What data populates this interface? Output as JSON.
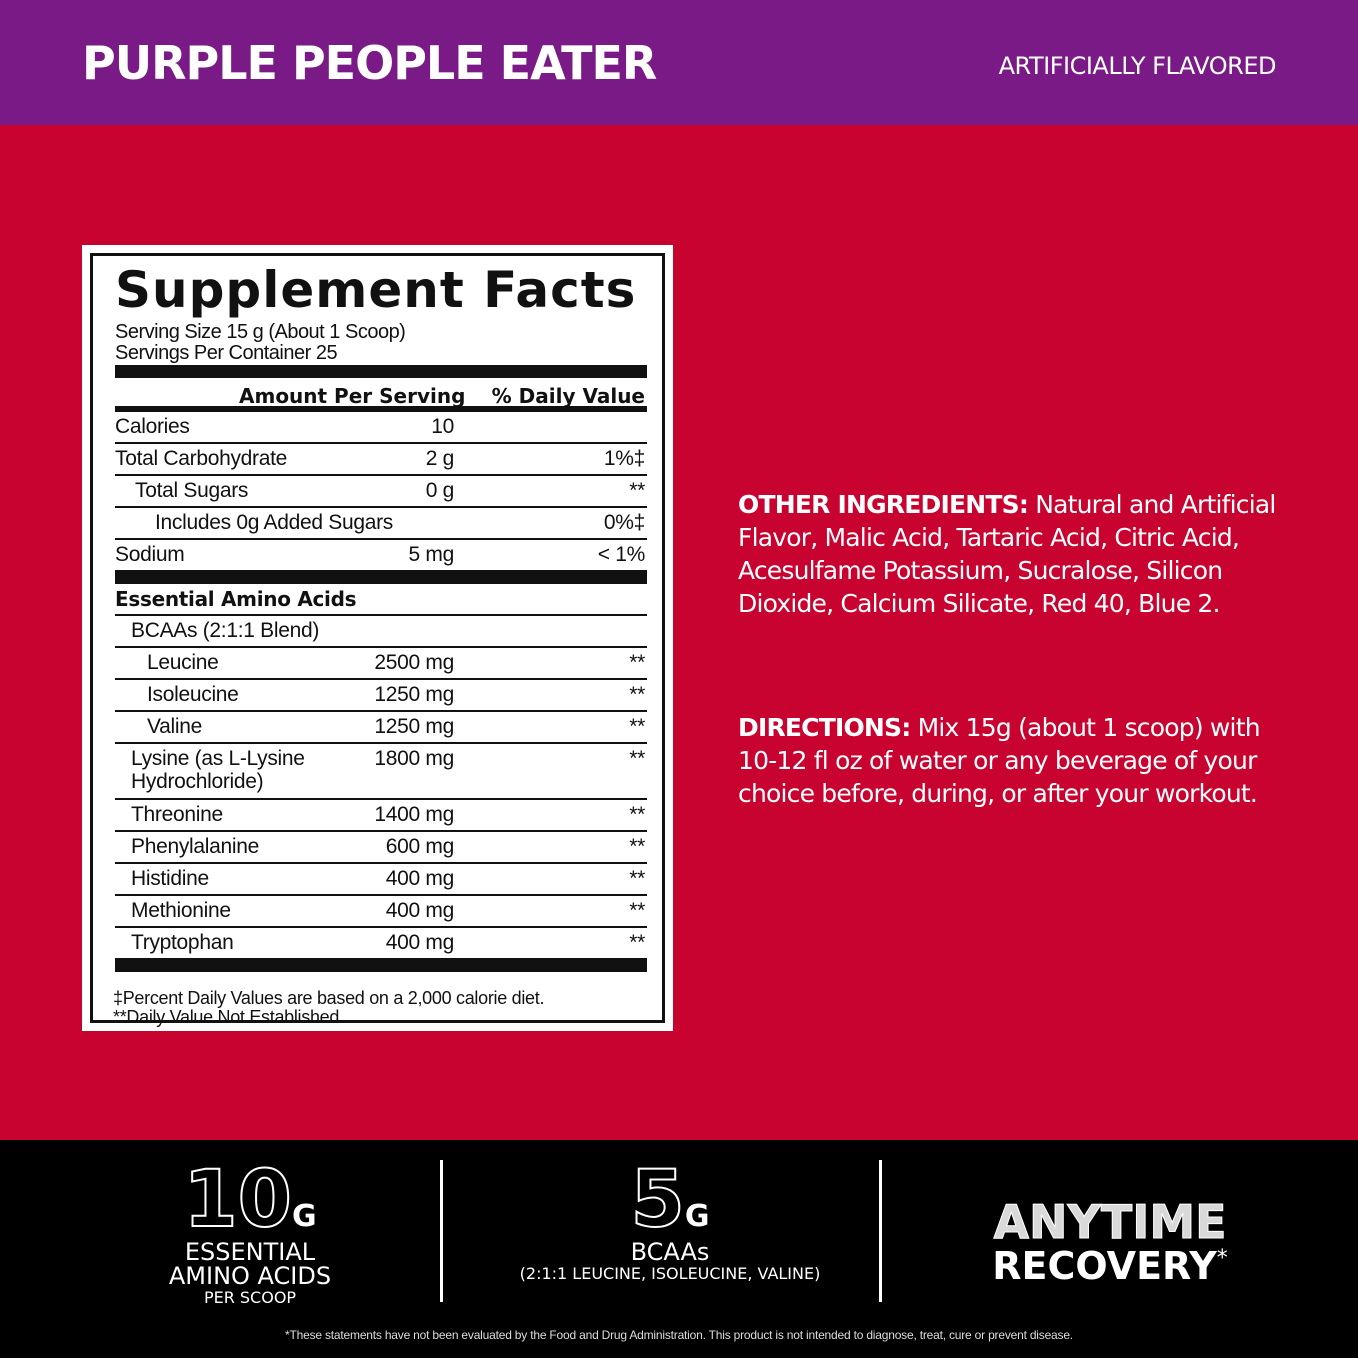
{
  "header": {
    "product_name": "PURPLE PEOPLE EATER",
    "flavor_note": "ARTIFICIALLY FLAVORED"
  },
  "colors": {
    "header": "#7a1a86",
    "background": "#c8032f",
    "footer": "#000000"
  },
  "facts": {
    "title": "Supplement Facts",
    "serving_size": "Serving Size 15 g (About 1 Scoop)",
    "servings_per_container": "Servings Per Container 25",
    "col_amount": "Amount Per Serving",
    "col_dv": "% Daily Value",
    "rows": [
      {
        "name": "Calories",
        "amount": "10",
        "dv": "",
        "indent": 0
      },
      {
        "name": "Total Carbohydrate",
        "amount": "2 g",
        "dv": "1%‡",
        "indent": 0
      },
      {
        "name": "Total Sugars",
        "amount": "0 g",
        "dv": "**",
        "indent": 20
      },
      {
        "name": "Includes 0g Added Sugars",
        "amount": "",
        "dv": "0%‡",
        "indent": 40
      },
      {
        "name": "Sodium",
        "amount": "5 mg",
        "dv": "< 1%",
        "indent": 0,
        "thick": true
      },
      {
        "name": "Essential Amino Acids",
        "amount": "",
        "dv": "",
        "indent": 0,
        "bold": true
      },
      {
        "name": "BCAAs (2:1:1 Blend)",
        "amount": "",
        "dv": "",
        "indent": 16
      },
      {
        "name": "Leucine",
        "amount": "2500 mg",
        "dv": "**",
        "indent": 32
      },
      {
        "name": "Isoleucine",
        "amount": "1250 mg",
        "dv": "**",
        "indent": 32
      },
      {
        "name": "Valine",
        "amount": "1250 mg",
        "dv": "**",
        "indent": 32
      },
      {
        "name": "Lysine (as L-Lysine Hydrochloride)",
        "amount": "1800 mg",
        "dv": "**",
        "indent": 16,
        "tall": true
      },
      {
        "name": "Threonine",
        "amount": "1400 mg",
        "dv": "**",
        "indent": 16
      },
      {
        "name": "Phenylalanine",
        "amount": "600 mg",
        "dv": "**",
        "indent": 16
      },
      {
        "name": "Histidine",
        "amount": "400 mg",
        "dv": "**",
        "indent": 16
      },
      {
        "name": "Methionine",
        "amount": "400 mg",
        "dv": "**",
        "indent": 16
      },
      {
        "name": "Tryptophan",
        "amount": "400 mg",
        "dv": "**",
        "indent": 16,
        "thick": true
      }
    ],
    "footnote_1": "‡Percent Daily Values are based on a 2,000 calorie diet.",
    "footnote_2": "**Daily Value Not Established."
  },
  "other_ingredients": {
    "label": "OTHER INGREDIENTS:",
    "text": " Natural and Artificial Flavor, Malic Acid, Tartaric Acid, Citric Acid, Acesulfame Potassium, Sucralose, Silicon Dioxide, Calcium Silicate, Red 40, Blue 2."
  },
  "directions": {
    "label": "DIRECTIONS:",
    "text": " Mix 15g (about 1 scoop) with 10-12 fl oz of water or any beverage of your choice before, during, or after your workout."
  },
  "features": {
    "eaa_value": "10",
    "eaa_unit": "G",
    "eaa_line1": "ESSENTIAL",
    "eaa_line2": "AMINO ACIDS",
    "eaa_line3": "PER SCOOP",
    "bcaa_value": "5",
    "bcaa_unit": "G",
    "bcaa_line1": "BCAAs",
    "bcaa_line2": "(2:1:1 LEUCINE, ISOLEUCINE, VALINE)",
    "recovery_line1": "ANYTIME",
    "recovery_line2": "RECOVERY",
    "recovery_mark": "*"
  },
  "disclaimer": "*These statements have not been evaluated by the Food and Drug Administration. This product is not intended to diagnose, treat, cure or prevent disease."
}
